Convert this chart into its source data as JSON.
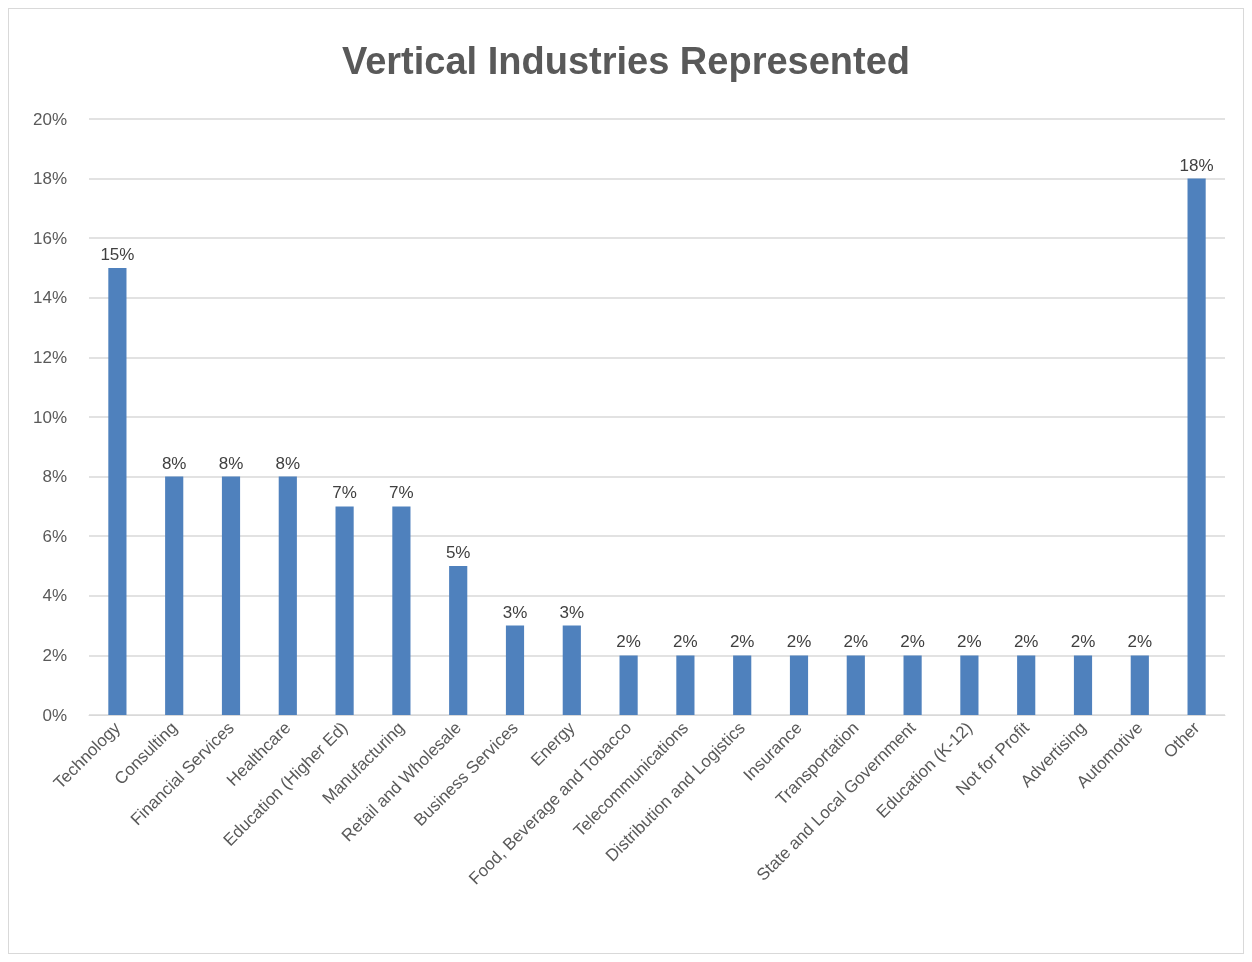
{
  "chart_data": {
    "type": "bar",
    "title": "Vertical Industries Represented",
    "categories": [
      "Technology",
      "Consulting",
      "Financial Services",
      "Healthcare",
      "Education (Higher Ed)",
      "Manufacturing",
      "Retail and Wholesale",
      "Business Services",
      "Energy",
      "Food, Beverage and Tobacco",
      "Telecommunications",
      "Distribution and Logistics",
      "Insurance",
      "Transportation",
      "State and Local Government",
      "Education (K-12)",
      "Not for Profit",
      "Advertising",
      "Automotive",
      "Other"
    ],
    "values": [
      15,
      8,
      8,
      8,
      7,
      7,
      5,
      3,
      3,
      2,
      2,
      2,
      2,
      2,
      2,
      2,
      2,
      2,
      2,
      18
    ],
    "value_labels": [
      "15%",
      "8%",
      "8%",
      "8%",
      "7%",
      "7%",
      "5%",
      "3%",
      "3%",
      "2%",
      "2%",
      "2%",
      "2%",
      "2%",
      "2%",
      "2%",
      "2%",
      "2%",
      "2%",
      "18%"
    ],
    "color": "#4f81bd",
    "ylim": [
      0,
      20
    ],
    "yticks": [
      {
        "value": 0,
        "label": "0%"
      },
      {
        "value": 2,
        "label": "2%"
      },
      {
        "value": 4,
        "label": "4%"
      },
      {
        "value": 6,
        "label": "6%"
      },
      {
        "value": 8,
        "label": "8%"
      },
      {
        "value": 10,
        "label": "10%"
      },
      {
        "value": 12,
        "label": "12%"
      },
      {
        "value": 14,
        "label": "14%"
      },
      {
        "value": 16,
        "label": "16%"
      },
      {
        "value": 18,
        "label": "18%"
      },
      {
        "value": 20,
        "label": "20%"
      }
    ],
    "grid": "y"
  }
}
